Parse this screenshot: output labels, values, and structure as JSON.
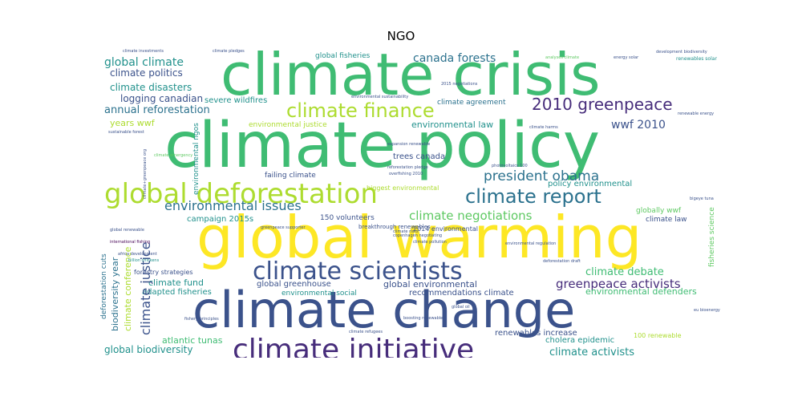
{
  "title": "NGO",
  "colors": {
    "dark_purple": "#472d7b",
    "indigo": "#3b528b",
    "blue": "#2c728e",
    "teal": "#21918c",
    "green": "#28ae80",
    "light_green": "#5ec962",
    "lime": "#addc30",
    "yellow": "#fde725",
    "deep": "#440154"
  },
  "words": [
    {
      "text": "climate crisis",
      "color": "#3fbc73"
    },
    {
      "text": "climate policy",
      "color": "#3fbc73"
    },
    {
      "text": "global warming",
      "color": "#fde725"
    },
    {
      "text": "climate change",
      "color": "#3b528b"
    },
    {
      "text": "global deforestation",
      "color": "#addc30"
    },
    {
      "text": "climate initiative",
      "color": "#472d7b"
    },
    {
      "text": "climate scientists",
      "color": "#3b528b"
    },
    {
      "text": "climate finance",
      "color": "#addc30"
    },
    {
      "text": "climate report",
      "color": "#2c728e"
    },
    {
      "text": "2010 greenpeace",
      "color": "#472d7b"
    },
    {
      "text": "president obama",
      "color": "#2c728e"
    },
    {
      "text": "environmental issues",
      "color": "#2c728e"
    },
    {
      "text": "climate negotiations",
      "color": "#5ec962"
    },
    {
      "text": "greenpeace activists",
      "color": "#472d7b"
    },
    {
      "text": "global climate",
      "color": "#21918c"
    },
    {
      "text": "canada forests",
      "color": "#2c728e"
    },
    {
      "text": "climate politics",
      "color": "#3b528b"
    },
    {
      "text": "climate disasters",
      "color": "#21918c"
    },
    {
      "text": "logging canadian",
      "color": "#3b528b"
    },
    {
      "text": "annual reforestation",
      "color": "#2c728e"
    },
    {
      "text": "years wwf",
      "color": "#addc30"
    },
    {
      "text": "wwf 2010",
      "color": "#3b528b"
    },
    {
      "text": "environmental law",
      "color": "#21918c"
    },
    {
      "text": "environmental justice",
      "color": "#addc30"
    },
    {
      "text": "severe wildfires",
      "color": "#21918c"
    },
    {
      "text": "climate agreement",
      "color": "#2c728e"
    },
    {
      "text": "global fisheries",
      "color": "#21918c"
    },
    {
      "text": "climate debate",
      "color": "#3fbc73"
    },
    {
      "text": "global greenhouse",
      "color": "#3b528b"
    },
    {
      "text": "global environmental",
      "color": "#3b528b"
    },
    {
      "text": "climate fund",
      "color": "#21918c"
    },
    {
      "text": "adapted fisheries",
      "color": "#21918c"
    },
    {
      "text": "environmental social",
      "color": "#21918c"
    },
    {
      "text": "recommendations climate",
      "color": "#3b528b"
    },
    {
      "text": "environmental defenders",
      "color": "#3fbc73"
    },
    {
      "text": "climate activists",
      "color": "#21918c"
    },
    {
      "text": "cholera epidemic",
      "color": "#21918c"
    },
    {
      "text": "renewables increase",
      "color": "#3b528b"
    },
    {
      "text": "atlantic tunas",
      "color": "#3fbc73"
    },
    {
      "text": "global biodiversity",
      "color": "#21918c"
    },
    {
      "text": "climate justice",
      "color": "#3b528b"
    },
    {
      "text": "climate conference",
      "color": "#addc30"
    },
    {
      "text": "biodiversity year",
      "color": "#2c728e"
    },
    {
      "text": "deforestation cuts",
      "color": "#2c728e"
    },
    {
      "text": "campaign 2015s",
      "color": "#21918c"
    },
    {
      "text": "150 volunteers",
      "color": "#3b528b"
    },
    {
      "text": "2014 environmental",
      "color": "#3b528b"
    },
    {
      "text": "policy environmental",
      "color": "#21918c"
    },
    {
      "text": "globally wwf",
      "color": "#5ec962"
    },
    {
      "text": "climate law",
      "color": "#3b528b"
    },
    {
      "text": "fisheries science",
      "color": "#5ec962"
    },
    {
      "text": "trees canada",
      "color": "#3b528b"
    },
    {
      "text": "failing climate",
      "color": "#3b528b"
    },
    {
      "text": "biggest environmental",
      "color": "#addc30"
    },
    {
      "text": "breakthrough renewables",
      "color": "#3b528b"
    },
    {
      "text": "environmental ngos",
      "color": "#21918c"
    },
    {
      "text": "forestry strategies",
      "color": "#3b528b"
    },
    {
      "text": "100 renewable",
      "color": "#addc30"
    },
    {
      "text": "climate investments",
      "color": "#3b528b"
    },
    {
      "text": "climate pledges",
      "color": "#3b528b"
    },
    {
      "text": "development biodiversity",
      "color": "#3b528b"
    },
    {
      "text": "renewables solar",
      "color": "#21918c"
    },
    {
      "text": "sustainable forest",
      "color": "#3b528b"
    },
    {
      "text": "climate emergency",
      "color": "#5ec962"
    },
    {
      "text": "global renewable",
      "color": "#3b528b"
    },
    {
      "text": "international fishing",
      "color": "#440154"
    },
    {
      "text": "africa development",
      "color": "#3b528b"
    },
    {
      "text": "billion chickens",
      "color": "#21918c"
    },
    {
      "text": "greenpeace supporter",
      "color": "#3b528b"
    },
    {
      "text": "photovoltaics 100",
      "color": "#3b528b"
    },
    {
      "text": "climate harms",
      "color": "#3b528b"
    },
    {
      "text": "renewable energy",
      "color": "#3b528b"
    },
    {
      "text": "climate risks",
      "color": "#3b528b"
    },
    {
      "text": "climate pollution",
      "color": "#3b528b"
    },
    {
      "text": "copenhagen negotiating",
      "color": "#3b528b"
    },
    {
      "text": "deforestation draft",
      "color": "#3b528b"
    },
    {
      "text": "global oil",
      "color": "#3b528b"
    },
    {
      "text": "boosting renewable",
      "color": "#3b528b"
    },
    {
      "text": "fishery principles",
      "color": "#3b528b"
    },
    {
      "text": "climate refugees",
      "color": "#3b528b"
    },
    {
      "text": "eu bioenergy",
      "color": "#3b528b"
    },
    {
      "text": "bigeye tuna",
      "color": "#3b528b"
    },
    {
      "text": "2015 negotiations",
      "color": "#3b528b"
    },
    {
      "text": "energy solar",
      "color": "#3b528b"
    },
    {
      "text": "analyses climate",
      "color": "#5ec962"
    },
    {
      "text": "environmental sustainability",
      "color": "#3b528b"
    },
    {
      "text": "reforestation pledge",
      "color": "#3b528b"
    },
    {
      "text": "overfishing 2010",
      "color": "#3b528b"
    },
    {
      "text": "expansion renewable",
      "color": "#3b528b"
    },
    {
      "text": "climate+greenpeace org",
      "color": "#3b528b"
    },
    {
      "text": "environmental regulation",
      "color": "#3b528b"
    }
  ]
}
